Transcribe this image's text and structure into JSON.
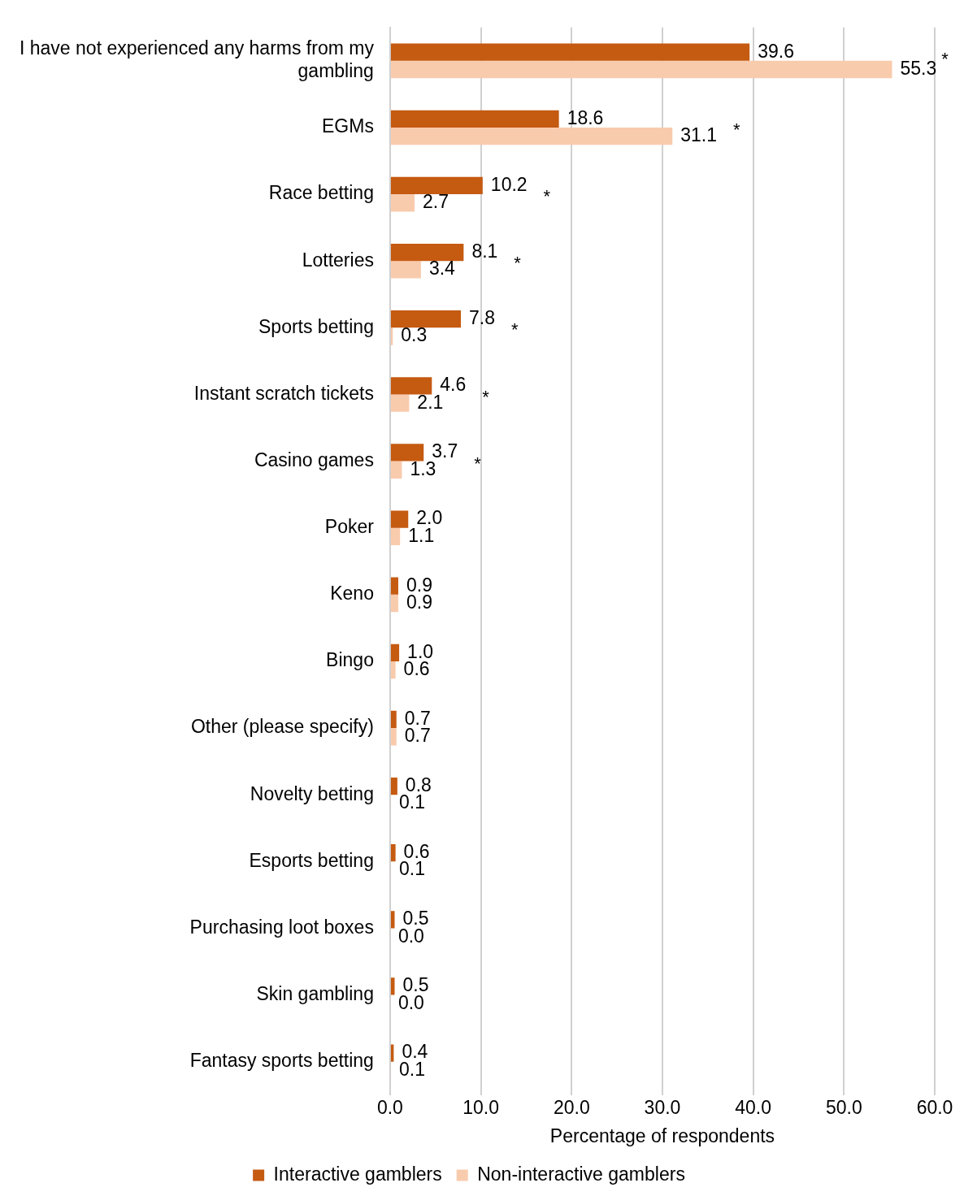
{
  "chart_data": {
    "type": "bar",
    "orientation": "horizontal",
    "xlabel": "Percentage of respondents",
    "categories": [
      "I have not experienced any harms from my gambling",
      "EGMs",
      "Race betting",
      "Lotteries",
      "Sports betting",
      "Instant scratch tickets",
      "Casino games",
      "Poker",
      "Keno",
      "Bingo",
      "Other (please specify)",
      "Novelty betting",
      "Esports betting",
      "Purchasing loot boxes",
      "Skin gambling",
      "Fantasy sports betting"
    ],
    "series": [
      {
        "name": "Interactive gamblers",
        "color": "#c55a11",
        "values": [
          39.6,
          18.6,
          10.2,
          8.1,
          7.8,
          4.6,
          3.7,
          2.0,
          0.9,
          1.0,
          0.7,
          0.8,
          0.6,
          0.5,
          0.5,
          0.4
        ],
        "value_labels": [
          "39.6",
          "18.6",
          "10.2",
          "8.1",
          "7.8",
          "4.6",
          "3.7",
          "2.0",
          "0.9",
          "1.0",
          "0.7",
          "0.8",
          "0.6",
          "0.5",
          "0.5",
          "0.4"
        ]
      },
      {
        "name": "Non-interactive gamblers",
        "color": "#f8cbad",
        "values": [
          55.3,
          31.1,
          2.7,
          3.4,
          0.3,
          2.1,
          1.3,
          1.1,
          0.9,
          0.6,
          0.7,
          0.1,
          0.1,
          0.0,
          0.0,
          0.1
        ],
        "value_labels": [
          "55.3",
          "31.1",
          "2.7",
          "3.4",
          "0.3",
          "2.1",
          "1.3",
          "1.1",
          "0.9",
          "0.6",
          "0.7",
          "0.1",
          "0.1",
          "0.0",
          "0.0",
          "0.1"
        ]
      }
    ],
    "xlim": [
      0,
      60
    ],
    "xticks": [
      {
        "value": 0,
        "label": "0.0"
      },
      {
        "value": 10,
        "label": "10.0"
      },
      {
        "value": 20,
        "label": "20.0"
      },
      {
        "value": 30,
        "label": "30.0"
      },
      {
        "value": 40,
        "label": "40.0"
      },
      {
        "value": 50,
        "label": "50.0"
      },
      {
        "value": 60,
        "label": "60.0"
      }
    ],
    "annotations": [
      "*",
      "*",
      "*",
      "*",
      "*",
      "*",
      "*"
    ],
    "grid": "x",
    "legend": "bottom"
  }
}
